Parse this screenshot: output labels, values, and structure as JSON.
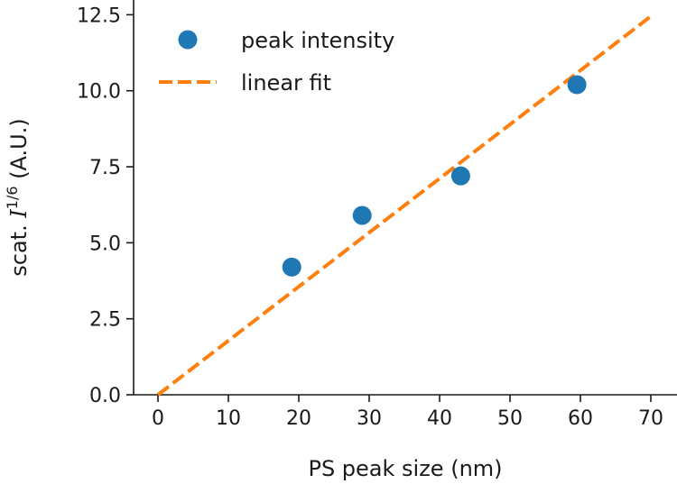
{
  "chart_data": {
    "type": "scatter",
    "xlabel": "PS peak size (nm)",
    "ylabel_prefix": "scat. ",
    "ylabel_symbol": "I",
    "ylabel_exponent": "1/6",
    "ylabel_suffix": " (A.U.)",
    "xlim": [
      -2.5,
      72.5
    ],
    "ylim": [
      0,
      12.5
    ],
    "xticks": [
      "0",
      "10",
      "20",
      "30",
      "40",
      "50",
      "60",
      "70"
    ],
    "yticks": [
      "0.0",
      "2.5",
      "5.0",
      "7.5",
      "10.0",
      "12.5"
    ],
    "series": [
      {
        "name": "peak intensity",
        "kind": "scatter",
        "color": "#1f77b4",
        "x": [
          19,
          29,
          43,
          59.5
        ],
        "y": [
          4.2,
          5.9,
          7.2,
          10.2
        ]
      },
      {
        "name": "linear fit",
        "kind": "line",
        "style": "dashed",
        "color": "#ff7f0e",
        "x": [
          0,
          70
        ],
        "y": [
          0,
          12.45
        ]
      }
    ],
    "legend": {
      "position": "top-left",
      "entries": [
        "peak intensity",
        "linear fit"
      ]
    }
  }
}
